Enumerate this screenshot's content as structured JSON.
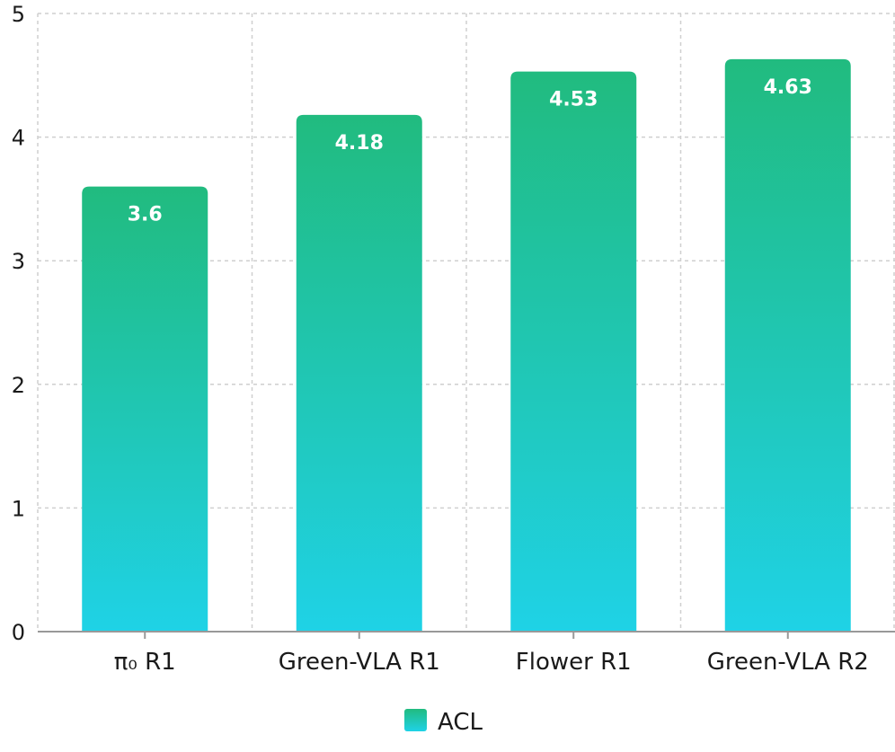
{
  "chart_data": {
    "type": "bar",
    "title": "",
    "xlabel": "",
    "ylabel": "",
    "categories": [
      "π₀ R1",
      "Green-VLA R1",
      "Flower R1",
      "Green-VLA R2"
    ],
    "series": [
      {
        "name": "ACL",
        "values": [
          3.6,
          4.18,
          4.53,
          4.63
        ]
      }
    ],
    "data_labels": [
      "3.6",
      "4.18",
      "4.53",
      "4.63"
    ],
    "ylim": [
      0,
      5
    ],
    "yticks": [
      0,
      1,
      2,
      3,
      4,
      5
    ],
    "grid": true,
    "legend_position": "bottom-center",
    "colors": {
      "bar_top": "#21bb7f",
      "bar_bottom": "#1fd2e6",
      "grid": "#cfcfcf",
      "axis": "#999999"
    }
  }
}
